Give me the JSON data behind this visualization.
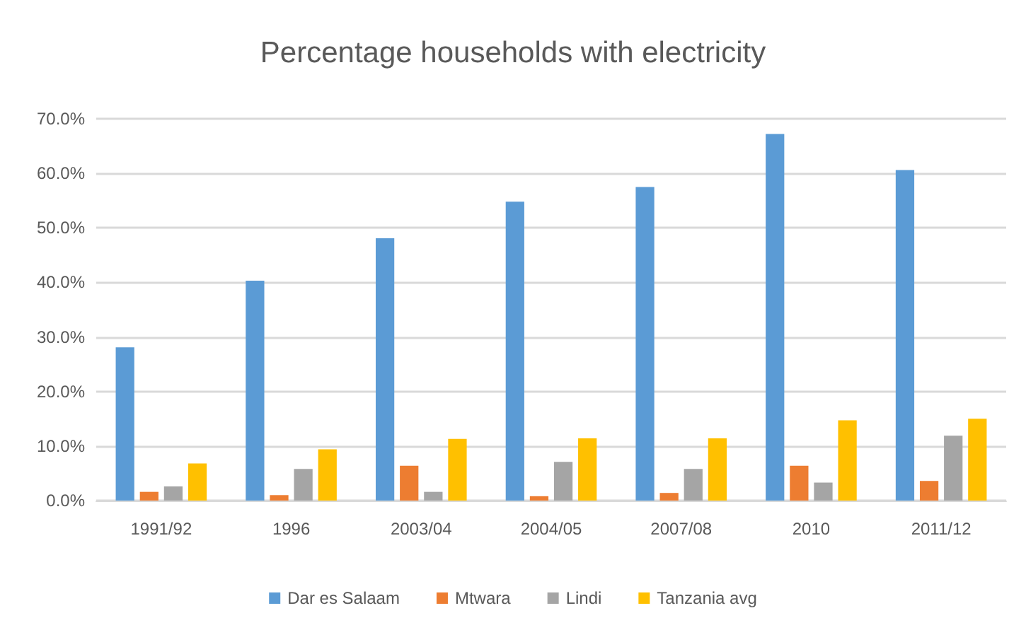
{
  "chart_data": {
    "type": "bar",
    "title": "Percentage households with electricity",
    "categories": [
      "1991/92",
      "1996",
      "2003/04",
      "2004/05",
      "2007/08",
      "2010",
      "2011/12"
    ],
    "series": [
      {
        "name": "Dar es Salaam",
        "color": "#5b9bd5",
        "values": [
          28.1,
          40.3,
          48.1,
          54.8,
          57.5,
          67.2,
          60.6
        ]
      },
      {
        "name": "Mtwara",
        "color": "#ed7d31",
        "values": [
          1.6,
          1.0,
          6.4,
          0.8,
          1.4,
          6.4,
          3.6
        ]
      },
      {
        "name": "Lindi",
        "color": "#a5a5a5",
        "values": [
          2.6,
          5.8,
          1.6,
          7.1,
          5.8,
          3.3,
          11.9
        ]
      },
      {
        "name": "Tanzania avg",
        "color": "#ffc000",
        "values": [
          6.8,
          9.4,
          11.3,
          11.4,
          11.4,
          14.7,
          15.0
        ]
      }
    ],
    "ylim": [
      0,
      70
    ],
    "yticks": [
      {
        "value": 0,
        "label": "0.0%"
      },
      {
        "value": 10,
        "label": "10.0%"
      },
      {
        "value": 20,
        "label": "20.0%"
      },
      {
        "value": 30,
        "label": "30.0%"
      },
      {
        "value": 40,
        "label": "40.0%"
      },
      {
        "value": 50,
        "label": "50.0%"
      },
      {
        "value": 60,
        "label": "60.0%"
      },
      {
        "value": 70,
        "label": "70.0%"
      }
    ],
    "grid": "y",
    "legend": "bottom"
  }
}
